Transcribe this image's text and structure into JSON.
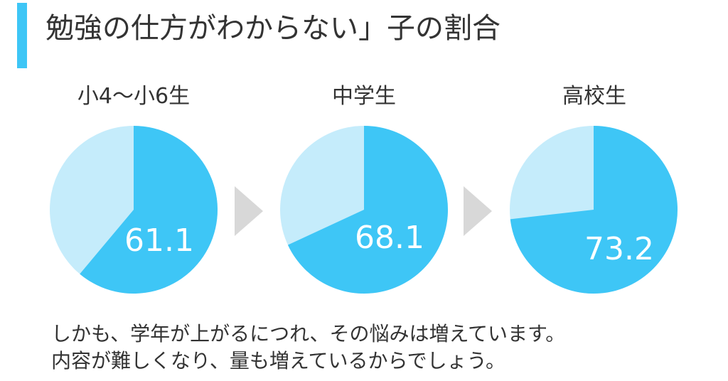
{
  "title": "勉強の仕方がわからない」子の割合",
  "colors": {
    "accent": "#3ec6f6",
    "answer": "#3ec6f6",
    "other": "#c5ecfb",
    "arrow": "#d8d8d8"
  },
  "chart_data": [
    {
      "type": "pie",
      "label": "小4～小6生",
      "value": 61.1,
      "value_label": "61.1"
    },
    {
      "type": "pie",
      "label": "中学生",
      "value": 68.1,
      "value_label": "68.1"
    },
    {
      "type": "pie",
      "label": "高校生",
      "value": 73.2,
      "value_label": "73.2"
    }
  ],
  "caption": {
    "line1": "しかも、学年が上がるにつれ、その悩みは増えています。",
    "line2": "内容が難しくなり、量も増えているからでしょう。"
  }
}
